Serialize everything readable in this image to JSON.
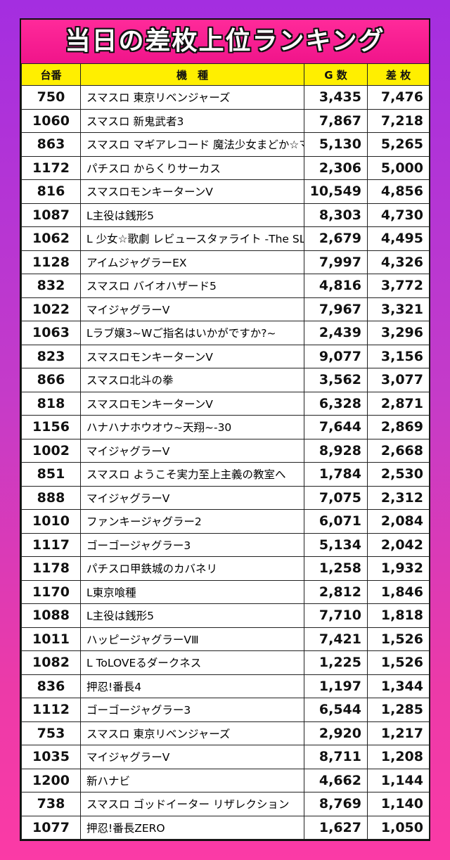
{
  "title": "当日の差枚上位ランキング",
  "columns": [
    "台番",
    "機　種",
    "G 数",
    "差 枚"
  ],
  "rows": [
    {
      "no": "750",
      "name": "スマスロ 東京リベンジャーズ",
      "games": "3,435",
      "diff": "7,476"
    },
    {
      "no": "1060",
      "name": "スマスロ 新鬼武者3",
      "games": "7,867",
      "diff": "7,218"
    },
    {
      "no": "863",
      "name": "スマスロ マギアレコード 魔法少女まどか☆マギカ外伝",
      "games": "5,130",
      "diff": "5,265"
    },
    {
      "no": "1172",
      "name": "パチスロ からくりサーカス",
      "games": "2,306",
      "diff": "5,000"
    },
    {
      "no": "816",
      "name": "スマスロモンキーターンV",
      "games": "10,549",
      "diff": "4,856"
    },
    {
      "no": "1087",
      "name": "L主役は銭形5",
      "games": "8,303",
      "diff": "4,730"
    },
    {
      "no": "1062",
      "name": "L 少女☆歌劇 レビュースタァライト -The SLOT-",
      "games": "2,679",
      "diff": "4,495"
    },
    {
      "no": "1128",
      "name": "アイムジャグラーEX",
      "games": "7,997",
      "diff": "4,326"
    },
    {
      "no": "832",
      "name": "スマスロ バイオハザード5",
      "games": "4,816",
      "diff": "3,772"
    },
    {
      "no": "1022",
      "name": "マイジャグラーV",
      "games": "7,967",
      "diff": "3,321"
    },
    {
      "no": "1063",
      "name": "Lラブ嬢3~Wご指名はいかがですか?~",
      "games": "2,439",
      "diff": "3,296"
    },
    {
      "no": "823",
      "name": "スマスロモンキーターンV",
      "games": "9,077",
      "diff": "3,156"
    },
    {
      "no": "866",
      "name": "スマスロ北斗の拳",
      "games": "3,562",
      "diff": "3,077"
    },
    {
      "no": "818",
      "name": "スマスロモンキーターンV",
      "games": "6,328",
      "diff": "2,871"
    },
    {
      "no": "1156",
      "name": "ハナハナホウオウ~天翔~-30",
      "games": "7,644",
      "diff": "2,869"
    },
    {
      "no": "1002",
      "name": "マイジャグラーV",
      "games": "8,928",
      "diff": "2,668"
    },
    {
      "no": "851",
      "name": "スマスロ ようこそ実力至上主義の教室へ",
      "games": "1,784",
      "diff": "2,530"
    },
    {
      "no": "888",
      "name": "マイジャグラーV",
      "games": "7,075",
      "diff": "2,312"
    },
    {
      "no": "1010",
      "name": "ファンキージャグラー2",
      "games": "6,071",
      "diff": "2,084"
    },
    {
      "no": "1117",
      "name": "ゴーゴージャグラー3",
      "games": "5,134",
      "diff": "2,042"
    },
    {
      "no": "1178",
      "name": "パチスロ甲鉄城のカバネリ",
      "games": "1,258",
      "diff": "1,932"
    },
    {
      "no": "1170",
      "name": "L東京喰種",
      "games": "2,812",
      "diff": "1,846"
    },
    {
      "no": "1088",
      "name": "L主役は銭形5",
      "games": "7,710",
      "diff": "1,818"
    },
    {
      "no": "1011",
      "name": "ハッピージャグラーVⅢ",
      "games": "7,421",
      "diff": "1,526"
    },
    {
      "no": "1082",
      "name": "L ToLOVEるダークネス",
      "games": "1,225",
      "diff": "1,526"
    },
    {
      "no": "836",
      "name": "押忍!番長4",
      "games": "1,197",
      "diff": "1,344"
    },
    {
      "no": "1112",
      "name": "ゴーゴージャグラー3",
      "games": "6,544",
      "diff": "1,285"
    },
    {
      "no": "753",
      "name": "スマスロ 東京リベンジャーズ",
      "games": "2,920",
      "diff": "1,217"
    },
    {
      "no": "1035",
      "name": "マイジャグラーV",
      "games": "8,711",
      "diff": "1,208"
    },
    {
      "no": "1200",
      "name": "新ハナビ",
      "games": "4,662",
      "diff": "1,144"
    },
    {
      "no": "738",
      "name": "スマスロ ゴッドイーター リザレクション",
      "games": "8,769",
      "diff": "1,140"
    },
    {
      "no": "1077",
      "name": "押忍!番長ZERO",
      "games": "1,627",
      "diff": "1,050"
    }
  ]
}
